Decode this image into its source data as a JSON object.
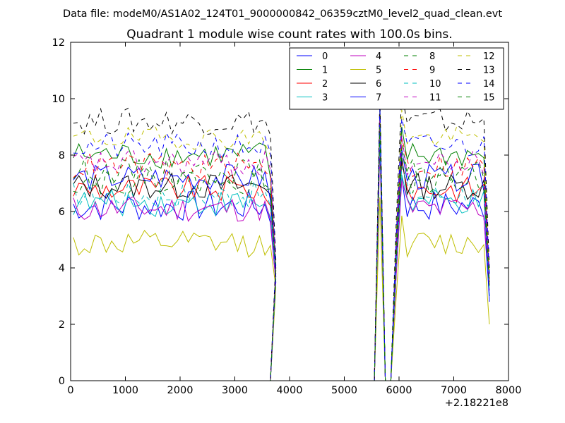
{
  "chart_data": {
    "type": "line",
    "suptitle": "Data file: modeM0/AS1A02_124T01_9000000842_06359cztM0_level2_quad_clean.evt",
    "title": "Quadrant 1 module wise count rates with 100.0s bins.",
    "xlabel": "",
    "ylabel": "",
    "x_offset_label": "+2.18221e8",
    "xlim": [
      0,
      8000
    ],
    "ylim": [
      0,
      12
    ],
    "xticks": [
      0,
      1000,
      2000,
      3000,
      4000,
      5000,
      6000,
      7000,
      8000
    ],
    "yticks": [
      0,
      2,
      4,
      6,
      8,
      10,
      12
    ],
    "legend_position": "upper-right",
    "legend_columns": 4,
    "segments": [
      {
        "x_start": 50,
        "x_end": 3550,
        "step": 100
      },
      {
        "x_start": 6050,
        "x_end": 7550,
        "step": 100
      }
    ],
    "gap_x": [
      3650,
      3750,
      3850,
      3950,
      4050,
      4150,
      4250,
      4350,
      4450,
      4550,
      4650,
      4750,
      4850,
      4950,
      5050,
      5150,
      5250,
      5350,
      5450,
      5550,
      5650,
      5750,
      5850,
      5950
    ],
    "series": [
      {
        "name": "0",
        "color": "#0000ff",
        "style": "solid",
        "base": 6.2,
        "amp": 0.35,
        "tail_x": [
          3650,
          3750
        ],
        "tail": [
          5.6,
          3.5
        ],
        "peak": 8.8,
        "end_x": 7650,
        "end": 3.0
      },
      {
        "name": "1",
        "color": "#008000",
        "style": "solid",
        "base": 8.0,
        "amp": 0.3,
        "tail_x": [
          3650,
          3750
        ],
        "tail": [
          7.2,
          4.0
        ],
        "peak": 9.8,
        "end_x": 7650,
        "end": 3.5
      },
      {
        "name": "2",
        "color": "#ff0000",
        "style": "solid",
        "base": 6.8,
        "amp": 0.3,
        "tail_x": [
          3650,
          3750
        ],
        "tail": [
          6.2,
          3.8
        ],
        "peak": 8.8,
        "end_x": 7650,
        "end": 3.4
      },
      {
        "name": "3",
        "color": "#00bfbf",
        "style": "solid",
        "base": 6.3,
        "amp": 0.3,
        "tail_x": [
          3650,
          3750
        ],
        "tail": [
          5.8,
          3.6
        ],
        "peak": 8.5,
        "end_x": 7650,
        "end": 3.0
      },
      {
        "name": "4",
        "color": "#bf00bf",
        "style": "solid",
        "base": 6.1,
        "amp": 0.3,
        "tail_x": [
          3650,
          3750
        ],
        "tail": [
          5.7,
          3.5
        ],
        "peak": 8.2,
        "end_x": 7650,
        "end": 3.2
      },
      {
        "name": "5",
        "color": "#bfbf00",
        "style": "solid",
        "base": 4.85,
        "amp": 0.3,
        "tail_x": [
          3650,
          3750
        ],
        "tail": [
          4.8,
          3.3
        ],
        "peak": 6.5,
        "end_x": 7650,
        "end": 2.0
      },
      {
        "name": "6",
        "color": "#000000",
        "style": "solid",
        "base": 6.9,
        "amp": 0.3,
        "tail_x": [
          3650,
          3750
        ],
        "tail": [
          6.6,
          3.9
        ],
        "peak": 9.0,
        "end_x": 7650,
        "end": 3.8
      },
      {
        "name": "7",
        "color": "#0000ff",
        "style": "solid",
        "base": 7.2,
        "amp": 0.3,
        "tail_x": [
          3650,
          3750
        ],
        "tail": [
          6.4,
          3.7
        ],
        "peak": 9.2,
        "end_x": 7650,
        "end": 2.8
      },
      {
        "name": "8",
        "color": "#008000",
        "style": "dashed",
        "base": 7.4,
        "amp": 0.3,
        "tail_x": [
          3650,
          3750
        ],
        "tail": [
          6.8,
          3.9
        ],
        "peak": 9.5,
        "end_x": 7650,
        "end": 3.5
      },
      {
        "name": "9",
        "color": "#ff0000",
        "style": "dashed",
        "base": 7.6,
        "amp": 0.3,
        "tail_x": [
          3650,
          3750
        ],
        "tail": [
          7.2,
          4.0
        ],
        "peak": 9.4,
        "end_x": 7650,
        "end": 3.6
      },
      {
        "name": "10",
        "color": "#00bfbf",
        "style": "dashed",
        "base": 6.6,
        "amp": 0.3,
        "tail_x": [
          3650,
          3750
        ],
        "tail": [
          6.2,
          3.7
        ],
        "peak": 8.6,
        "end_x": 7650,
        "end": 3.2
      },
      {
        "name": "11",
        "color": "#bf00bf",
        "style": "dashed",
        "base": 7.7,
        "amp": 0.3,
        "tail_x": [
          3650,
          3750
        ],
        "tail": [
          7.5,
          4.0
        ],
        "peak": 9.6,
        "end_x": 7650,
        "end": 3.6
      },
      {
        "name": "12",
        "color": "#bfbf00",
        "style": "dashed",
        "base": 8.6,
        "amp": 0.25,
        "tail_x": [
          3650,
          3750
        ],
        "tail": [
          8.0,
          4.2
        ],
        "peak": 9.8,
        "end_x": 7650,
        "end": 3.8
      },
      {
        "name": "13",
        "color": "#000000",
        "style": "dashed",
        "base": 9.2,
        "amp": 0.3,
        "tail_x": [
          3650,
          3750
        ],
        "tail": [
          8.7,
          4.3
        ],
        "peak": 10.1,
        "end_x": 7650,
        "end": 4.0
      },
      {
        "name": "14",
        "color": "#0000ff",
        "style": "dashed",
        "base": 8.3,
        "amp": 0.3,
        "tail_x": [
          3650,
          3750
        ],
        "tail": [
          8.1,
          4.1
        ],
        "peak": 9.7,
        "end_x": 7650,
        "end": 3.7
      },
      {
        "name": "15",
        "color": "#008000",
        "style": "dashed",
        "base": 7.1,
        "amp": 0.3,
        "tail_x": [
          3650,
          3750
        ],
        "tail": [
          6.8,
          3.8
        ],
        "peak": 9.0,
        "end_x": 7650,
        "end": 3.3
      }
    ]
  }
}
